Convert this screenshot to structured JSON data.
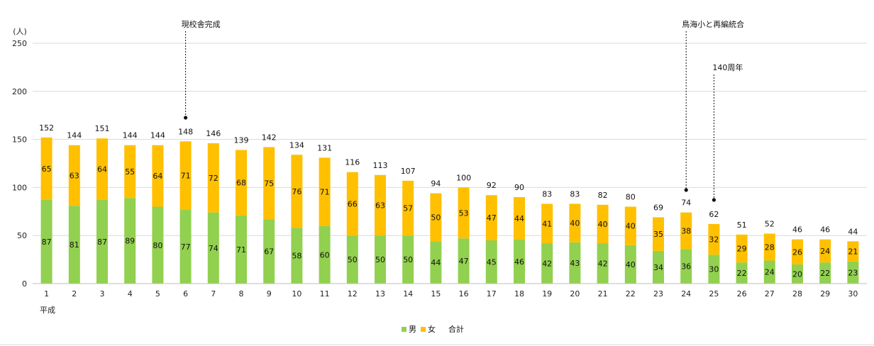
{
  "chart_data": {
    "type": "bar",
    "stacked": true,
    "y_unit_label": "(人)",
    "era_label": "平成",
    "ylim": [
      0,
      250
    ],
    "yticks": [
      0,
      50,
      100,
      150,
      200,
      250
    ],
    "grid": true,
    "legend_position": "bottom",
    "categories": [
      "1",
      "2",
      "3",
      "4",
      "5",
      "6",
      "7",
      "8",
      "9",
      "10",
      "11",
      "12",
      "13",
      "14",
      "15",
      "16",
      "17",
      "18",
      "19",
      "20",
      "21",
      "22",
      "23",
      "24",
      "25",
      "26",
      "27",
      "28",
      "29",
      "30"
    ],
    "series": [
      {
        "name": "男",
        "color": "#92D050",
        "values": [
          87,
          81,
          87,
          89,
          80,
          77,
          74,
          71,
          67,
          58,
          60,
          50,
          50,
          50,
          44,
          47,
          45,
          46,
          42,
          43,
          42,
          40,
          34,
          36,
          30,
          22,
          24,
          20,
          22,
          23
        ]
      },
      {
        "name": "女",
        "color": "#FFC000",
        "values": [
          65,
          63,
          64,
          55,
          64,
          71,
          72,
          68,
          75,
          76,
          71,
          66,
          63,
          57,
          50,
          53,
          47,
          44,
          41,
          40,
          40,
          40,
          35,
          38,
          32,
          29,
          28,
          26,
          24,
          21
        ]
      }
    ],
    "totals_label": "合計",
    "totals": [
      152,
      144,
      151,
      144,
      144,
      148,
      146,
      139,
      142,
      134,
      131,
      116,
      113,
      107,
      94,
      100,
      92,
      90,
      83,
      83,
      82,
      80,
      69,
      74,
      62,
      51,
      52,
      46,
      46,
      44
    ],
    "annotations": [
      {
        "text": "現校舎完成",
        "category": "6"
      },
      {
        "text": "鳥海小と再編統合",
        "category": "24"
      },
      {
        "text": "140周年",
        "category": "25"
      }
    ]
  }
}
